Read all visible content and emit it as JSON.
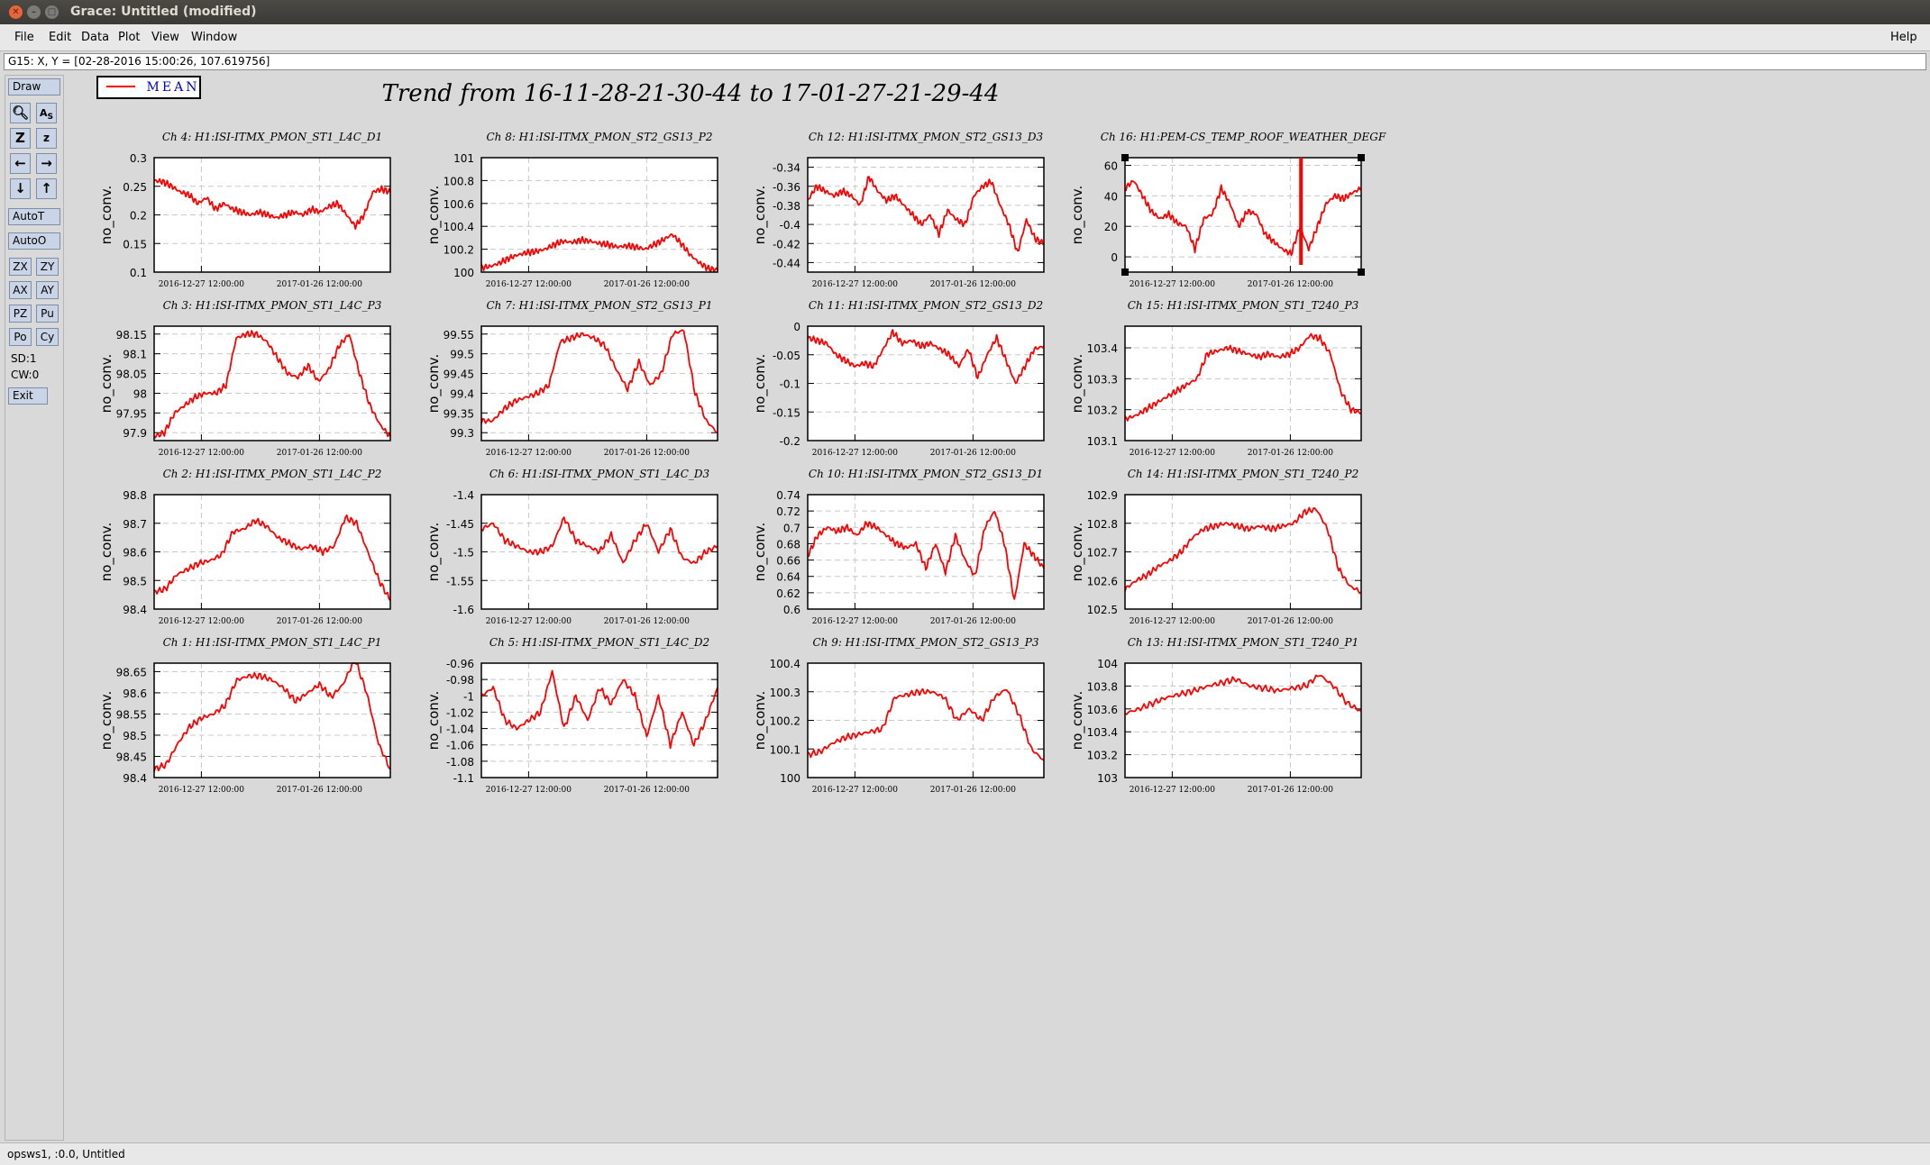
{
  "window": {
    "title": "Grace: Untitled (modified)"
  },
  "menu": {
    "file": "File",
    "edit": "Edit",
    "data": "Data",
    "plot": "Plot",
    "view": "View",
    "window": "Window",
    "help": "Help"
  },
  "locator": "G15: X, Y = [02-28-2016 15:00:26, 107.619756]",
  "toolbar": {
    "draw": "Draw",
    "autot": "AutoT",
    "autoo": "AutoO",
    "zx": "ZX",
    "zy": "ZY",
    "ax": "AX",
    "ay": "AY",
    "pz": "PZ",
    "pu": "Pu",
    "po": "Po",
    "cy": "Cy",
    "sd": "SD:1",
    "cw": "CW:0",
    "exit": "Exit"
  },
  "icons": [
    "zoom-icon",
    "autoscale-icon",
    "zoom-in-icon",
    "zoom-out-icon",
    "scroll-left-icon",
    "scroll-right-icon",
    "scroll-down-icon",
    "scroll-up-icon"
  ],
  "statusbar": "opsws1, :0.0, Untitled",
  "colors": {
    "series": "#ff0000",
    "legend_text": "#0000cc"
  },
  "chart_data": {
    "type": "line",
    "title": "Trend from 16-11-28-21-30-44 to 17-01-27-21-29-44",
    "legend": [
      {
        "name": "MEAN",
        "color": "#ff0000"
      }
    ],
    "x_tick_labels": [
      "2016-12-27 12:00:00",
      "2017-01-26 12:00:00"
    ],
    "x_range": [
      "2016-11-28 21:30:44",
      "2017-01-27 21:29:44"
    ],
    "grid": true,
    "panels": [
      {
        "title": "Ch 4: H1:ISI-ITMX_PMON_ST1_L4C_D1",
        "ylabel": "no_conv.",
        "ylim": [
          0.1,
          0.3
        ],
        "yticks": [
          "0.1",
          "0.15",
          "0.2",
          "0.25",
          "0.3"
        ],
        "y": [
          0.26,
          0.258,
          0.25,
          0.24,
          0.235,
          0.22,
          0.23,
          0.21,
          0.22,
          0.21,
          0.205,
          0.2,
          0.205,
          0.2,
          0.195,
          0.2,
          0.205,
          0.2,
          0.21,
          0.205,
          0.215,
          0.22,
          0.2,
          0.18,
          0.2,
          0.24,
          0.245,
          0.24
        ]
      },
      {
        "title": "Ch 8: H1:ISI-ITMX_PMON_ST2_GS13_P2",
        "ylabel": "no_conv.",
        "ylim": [
          100,
          101
        ],
        "yticks": [
          "100",
          "100.2",
          "100.4",
          "100.6",
          "100.8",
          "101"
        ],
        "y": [
          100.04,
          100.05,
          100.08,
          100.12,
          100.15,
          100.17,
          100.18,
          100.2,
          100.24,
          100.27,
          100.26,
          100.28,
          100.27,
          100.25,
          100.24,
          100.22,
          100.23,
          100.22,
          100.2,
          100.24,
          100.28,
          100.33,
          100.25,
          100.15,
          100.08,
          100.03,
          100.02
        ]
      },
      {
        "title": "Ch 12: H1:ISI-ITMX_PMON_ST2_GS13_D3",
        "ylabel": "no_conv.",
        "ylim": [
          -0.45,
          -0.33
        ],
        "yticks": [
          "-0.44",
          "-0.42",
          "-0.4",
          "-0.38",
          "-0.36",
          "-0.34"
        ],
        "y": [
          -0.375,
          -0.36,
          -0.365,
          -0.37,
          -0.365,
          -0.37,
          -0.38,
          -0.35,
          -0.365,
          -0.375,
          -0.37,
          -0.38,
          -0.39,
          -0.4,
          -0.39,
          -0.41,
          -0.385,
          -0.395,
          -0.4,
          -0.37,
          -0.36,
          -0.355,
          -0.38,
          -0.4,
          -0.43,
          -0.395,
          -0.415,
          -0.42
        ]
      },
      {
        "title": "Ch 16: H1:PEM-CS_TEMP_ROOF_WEATHER_DEGF",
        "ylabel": "no_conv.",
        "ylim": [
          -10,
          65
        ],
        "yticks": [
          "0",
          "20",
          "40",
          "60"
        ],
        "y": [
          45,
          50,
          40,
          30,
          25,
          28,
          22,
          20,
          5,
          25,
          28,
          45,
          35,
          20,
          30,
          28,
          15,
          10,
          5,
          2,
          20,
          5,
          20,
          35,
          40,
          38,
          42,
          45
        ]
      },
      {
        "title": "Ch 3: H1:ISI-ITMX_PMON_ST1_L4C_P3",
        "ylabel": "no_conv.",
        "ylim": [
          97.88,
          98.17
        ],
        "yticks": [
          "97.9",
          "97.95",
          "98",
          "98.05",
          "98.1",
          "98.15"
        ],
        "y": [
          97.89,
          97.9,
          97.95,
          97.97,
          97.99,
          98.0,
          98.0,
          98.02,
          98.14,
          98.15,
          98.15,
          98.13,
          98.09,
          98.05,
          98.04,
          98.07,
          98.03,
          98.06,
          98.12,
          98.15,
          98.05,
          97.97,
          97.92,
          97.89
        ]
      },
      {
        "title": "Ch 7: H1:ISI-ITMX_PMON_ST2_GS13_P1",
        "ylabel": "no_conv.",
        "ylim": [
          99.28,
          99.57
        ],
        "yticks": [
          "99.3",
          "99.35",
          "99.4",
          "99.45",
          "99.5",
          "99.55"
        ],
        "y": [
          99.33,
          99.33,
          99.36,
          99.38,
          99.39,
          99.4,
          99.42,
          99.53,
          99.54,
          99.55,
          99.54,
          99.52,
          99.46,
          99.41,
          99.48,
          99.42,
          99.45,
          99.55,
          99.56,
          99.4,
          99.33,
          99.3
        ]
      },
      {
        "title": "Ch 11: H1:ISI-ITMX_PMON_ST2_GS13_D2",
        "ylabel": "no_conv.",
        "ylim": [
          -0.2,
          0
        ],
        "yticks": [
          "-0.2",
          "-0.15",
          "-0.1",
          "-0.05",
          "0"
        ],
        "y": [
          -0.02,
          -0.025,
          -0.03,
          -0.05,
          -0.06,
          -0.07,
          -0.065,
          -0.07,
          -0.04,
          -0.01,
          -0.03,
          -0.025,
          -0.035,
          -0.03,
          -0.04,
          -0.05,
          -0.07,
          -0.04,
          -0.09,
          -0.05,
          -0.02,
          -0.06,
          -0.1,
          -0.07,
          -0.04,
          -0.035
        ]
      },
      {
        "title": "Ch 15: H1:ISI-ITMX_PMON_ST1_T240_P3",
        "ylabel": "no_conv.",
        "ylim": [
          103.1,
          103.47
        ],
        "yticks": [
          "103.1",
          "103.2",
          "103.3",
          "103.4"
        ],
        "y": [
          103.17,
          103.18,
          103.2,
          103.22,
          103.24,
          103.26,
          103.28,
          103.3,
          103.38,
          103.39,
          103.4,
          103.39,
          103.38,
          103.37,
          103.38,
          103.37,
          103.38,
          103.4,
          103.44,
          103.43,
          103.38,
          103.26,
          103.2,
          103.19
        ]
      },
      {
        "title": "Ch 2: H1:ISI-ITMX_PMON_ST1_L4C_P2",
        "ylabel": "no_conv.",
        "ylim": [
          98.4,
          98.8
        ],
        "yticks": [
          "98.4",
          "98.5",
          "98.6",
          "98.7",
          "98.8"
        ],
        "y": [
          98.46,
          98.47,
          98.52,
          98.54,
          98.56,
          98.57,
          98.59,
          98.67,
          98.68,
          98.71,
          98.69,
          98.65,
          98.63,
          98.61,
          98.62,
          98.6,
          98.62,
          98.72,
          98.7,
          98.6,
          98.5,
          98.43
        ]
      },
      {
        "title": "Ch 6: H1:ISI-ITMX_PMON_ST1_L4C_D3",
        "ylabel": "no_conv.",
        "ylim": [
          -1.6,
          -1.4
        ],
        "yticks": [
          "-1.6",
          "-1.55",
          "-1.5",
          "-1.45",
          "-1.4"
        ],
        "y": [
          -1.46,
          -1.45,
          -1.48,
          -1.49,
          -1.5,
          -1.5,
          -1.49,
          -1.44,
          -1.48,
          -1.49,
          -1.5,
          -1.47,
          -1.52,
          -1.48,
          -1.45,
          -1.5,
          -1.46,
          -1.51,
          -1.52,
          -1.5,
          -1.49
        ]
      },
      {
        "title": "Ch 10: H1:ISI-ITMX_PMON_ST2_GS13_D1",
        "ylabel": "no_conv.",
        "ylim": [
          0.6,
          0.74
        ],
        "yticks": [
          "0.6",
          "0.62",
          "0.64",
          "0.66",
          "0.68",
          "0.7",
          "0.72",
          "0.74"
        ],
        "y": [
          0.665,
          0.69,
          0.7,
          0.695,
          0.7,
          0.69,
          0.705,
          0.7,
          0.69,
          0.68,
          0.675,
          0.68,
          0.65,
          0.68,
          0.645,
          0.69,
          0.66,
          0.64,
          0.7,
          0.72,
          0.68,
          0.61,
          0.68,
          0.665,
          0.65
        ]
      },
      {
        "title": "Ch 14: H1:ISI-ITMX_PMON_ST1_T240_P2",
        "ylabel": "no_conv.",
        "ylim": [
          102.5,
          102.9
        ],
        "yticks": [
          "102.5",
          "102.6",
          "102.7",
          "102.8",
          "102.9"
        ],
        "y": [
          102.57,
          102.6,
          102.62,
          102.65,
          102.67,
          102.7,
          102.75,
          102.78,
          102.79,
          102.8,
          102.79,
          102.78,
          102.79,
          102.78,
          102.79,
          102.8,
          102.84,
          102.85,
          102.78,
          102.64,
          102.58,
          102.56
        ]
      },
      {
        "title": "Ch 1: H1:ISI-ITMX_PMON_ST1_L4C_P1",
        "ylabel": "no_conv.",
        "ylim": [
          98.4,
          98.67
        ],
        "yticks": [
          "98.4",
          "98.45",
          "98.5",
          "98.55",
          "98.6",
          "98.65"
        ],
        "y": [
          98.42,
          98.43,
          98.48,
          98.52,
          98.54,
          98.55,
          98.57,
          98.63,
          98.64,
          98.64,
          98.63,
          98.61,
          98.58,
          98.6,
          98.62,
          98.59,
          98.62,
          98.68,
          98.6,
          98.48,
          98.42
        ]
      },
      {
        "title": "Ch 5: H1:ISI-ITMX_PMON_ST1_L4C_D2",
        "ylabel": "no_conv.",
        "ylim": [
          -1.1,
          -0.96
        ],
        "yticks": [
          "-1.1",
          "-1.08",
          "-1.06",
          "-1.04",
          "-1.02",
          "-1",
          "-0.98",
          "-0.96"
        ],
        "y": [
          -1.0,
          -0.99,
          -1.03,
          -1.04,
          -1.03,
          -1.02,
          -0.97,
          -1.04,
          -1.0,
          -1.03,
          -0.99,
          -1.01,
          -0.98,
          -1.0,
          -1.05,
          -1.0,
          -1.06,
          -1.02,
          -1.06,
          -1.03,
          -0.99
        ]
      },
      {
        "title": "Ch 9: H1:ISI-ITMX_PMON_ST2_GS13_P3",
        "ylabel": "no_conv.",
        "ylim": [
          100,
          100.4
        ],
        "yticks": [
          "100",
          "100.1",
          "100.2",
          "100.3",
          "100.4"
        ],
        "y": [
          100.08,
          100.09,
          100.12,
          100.14,
          100.15,
          100.16,
          100.17,
          100.28,
          100.29,
          100.3,
          100.3,
          100.28,
          100.2,
          100.24,
          100.2,
          100.28,
          100.31,
          100.22,
          100.1,
          100.06
        ]
      },
      {
        "title": "Ch 13: H1:ISI-ITMX_PMON_ST1_T240_P1",
        "ylabel": "no_conv.",
        "ylim": [
          103,
          104
        ],
        "yticks": [
          "103",
          "103.2",
          "103.4",
          "103.6",
          "103.8",
          "104"
        ],
        "y": [
          103.56,
          103.6,
          103.65,
          103.7,
          103.73,
          103.76,
          103.8,
          103.83,
          103.86,
          103.8,
          103.78,
          103.76,
          103.78,
          103.8,
          103.9,
          103.8,
          103.65,
          103.58
        ]
      }
    ]
  }
}
